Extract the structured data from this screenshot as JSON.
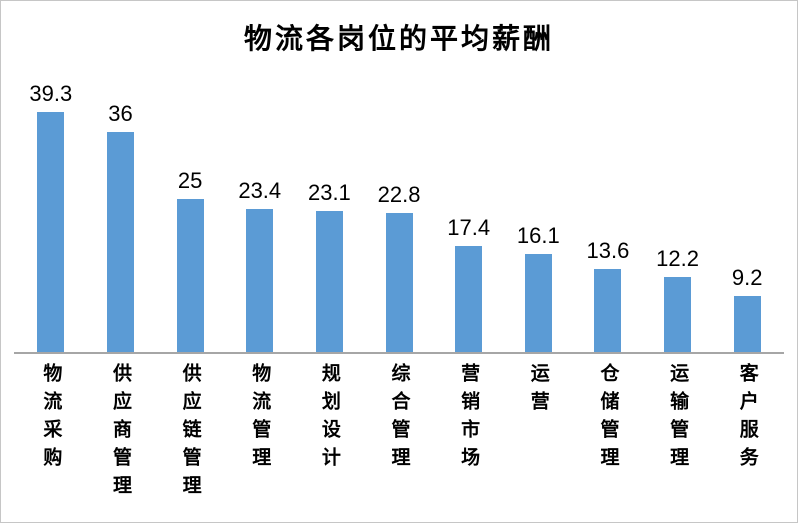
{
  "title": "物流各岗位的平均薪酬",
  "chart_data": {
    "type": "bar",
    "title": "物流各岗位的平均薪酬",
    "categories": [
      "物流采购",
      "供应商管理",
      "供应链管理",
      "物流管理",
      "规划设计",
      "综合管理",
      "营销市场",
      "运营",
      "仓储管理",
      "运输管理",
      "客户服务"
    ],
    "values": [
      39.3,
      36,
      25,
      23.4,
      23.1,
      22.8,
      17.4,
      16.1,
      13.6,
      12.2,
      9.2
    ],
    "data_labels": [
      "39.3",
      "36",
      "25",
      "23.4",
      "23.1",
      "22.8",
      "17.4",
      "16.1",
      "13.6",
      "12.2",
      "9.2"
    ],
    "xlabel": "",
    "ylabel": "",
    "ylim": [
      0,
      42
    ],
    "grid": false,
    "legend_position": "none",
    "bar_color": "#5b9bd5",
    "axis_line_color": "#a6a6a6",
    "label_color": "#000000",
    "orientation": "vertical"
  }
}
